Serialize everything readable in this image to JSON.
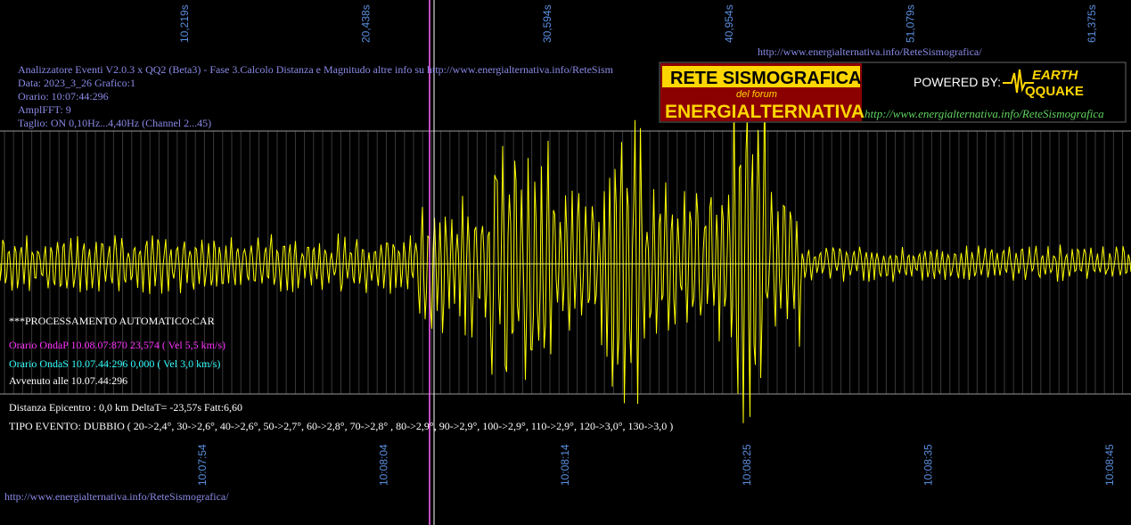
{
  "top_time_labels": [
    "10,219s",
    "20,438s",
    "30,594s",
    "40,954s",
    "51,079s",
    "61,375s"
  ],
  "top_url": "http://www.energialternativa.info/ReteSismografica/",
  "header": {
    "lines": [
      "Analizzatore Eventi V2.0.3 x QQ2 (Beta3) - Fase 3.Calcolo Distanza e Magnitudo altre info su http://www.energialternativa.info/ReteSism",
      "Data: 2023_3_26 Grafico:1",
      "Orario: 10:07:44:296",
      "AmplFFT: 9",
      "Taglio: ON 0,10Hz...4,40Hz      (Channel 2...45)"
    ]
  },
  "logo": {
    "title": "RETE SISMOGRAFICA",
    "subtitle": "del forum",
    "name": "ENERGIALTERNATIVA",
    "powered": "POWERED BY:",
    "brand_top": "EARTH",
    "brand_bottom": "QQUAKE",
    "url": "http://www.energialternativa.info/ReteSismografica"
  },
  "analysis": {
    "processing": "***PROCESSAMENTO AUTOMATICO:CAR",
    "onda_p": "Orario OndaP 10.08.07:870  23,574 ( Vel 5,5 km/s)",
    "onda_s": "Orario OndaS 10.07.44:296  0,000 ( Vel 3,0 km/s)",
    "occurred": "Avvenuto alle 10.07.44:296",
    "distance": "Distanza Epicentro : 0,0 km DeltaT= -23,57s  Fatt:6,60",
    "event_type": "TIPO EVENTO: DUBBIO ( 20->2,4°, 30->2,6°, 40->2,6°, 50->2,7°, 60->2,8°, 70->2,8° , 80->2,9°, 90->2,9°, 100->2,9°, 110->2,9°, 120->3,0°, 130->3,0 )"
  },
  "bottom_time_labels": [
    "10:07:54",
    "10:08:04",
    "10:08:14",
    "10:08:25",
    "10:08:35",
    "10:08:45"
  ],
  "footer_url": "http://www.energialternativa.info/ReteSismografica/"
}
